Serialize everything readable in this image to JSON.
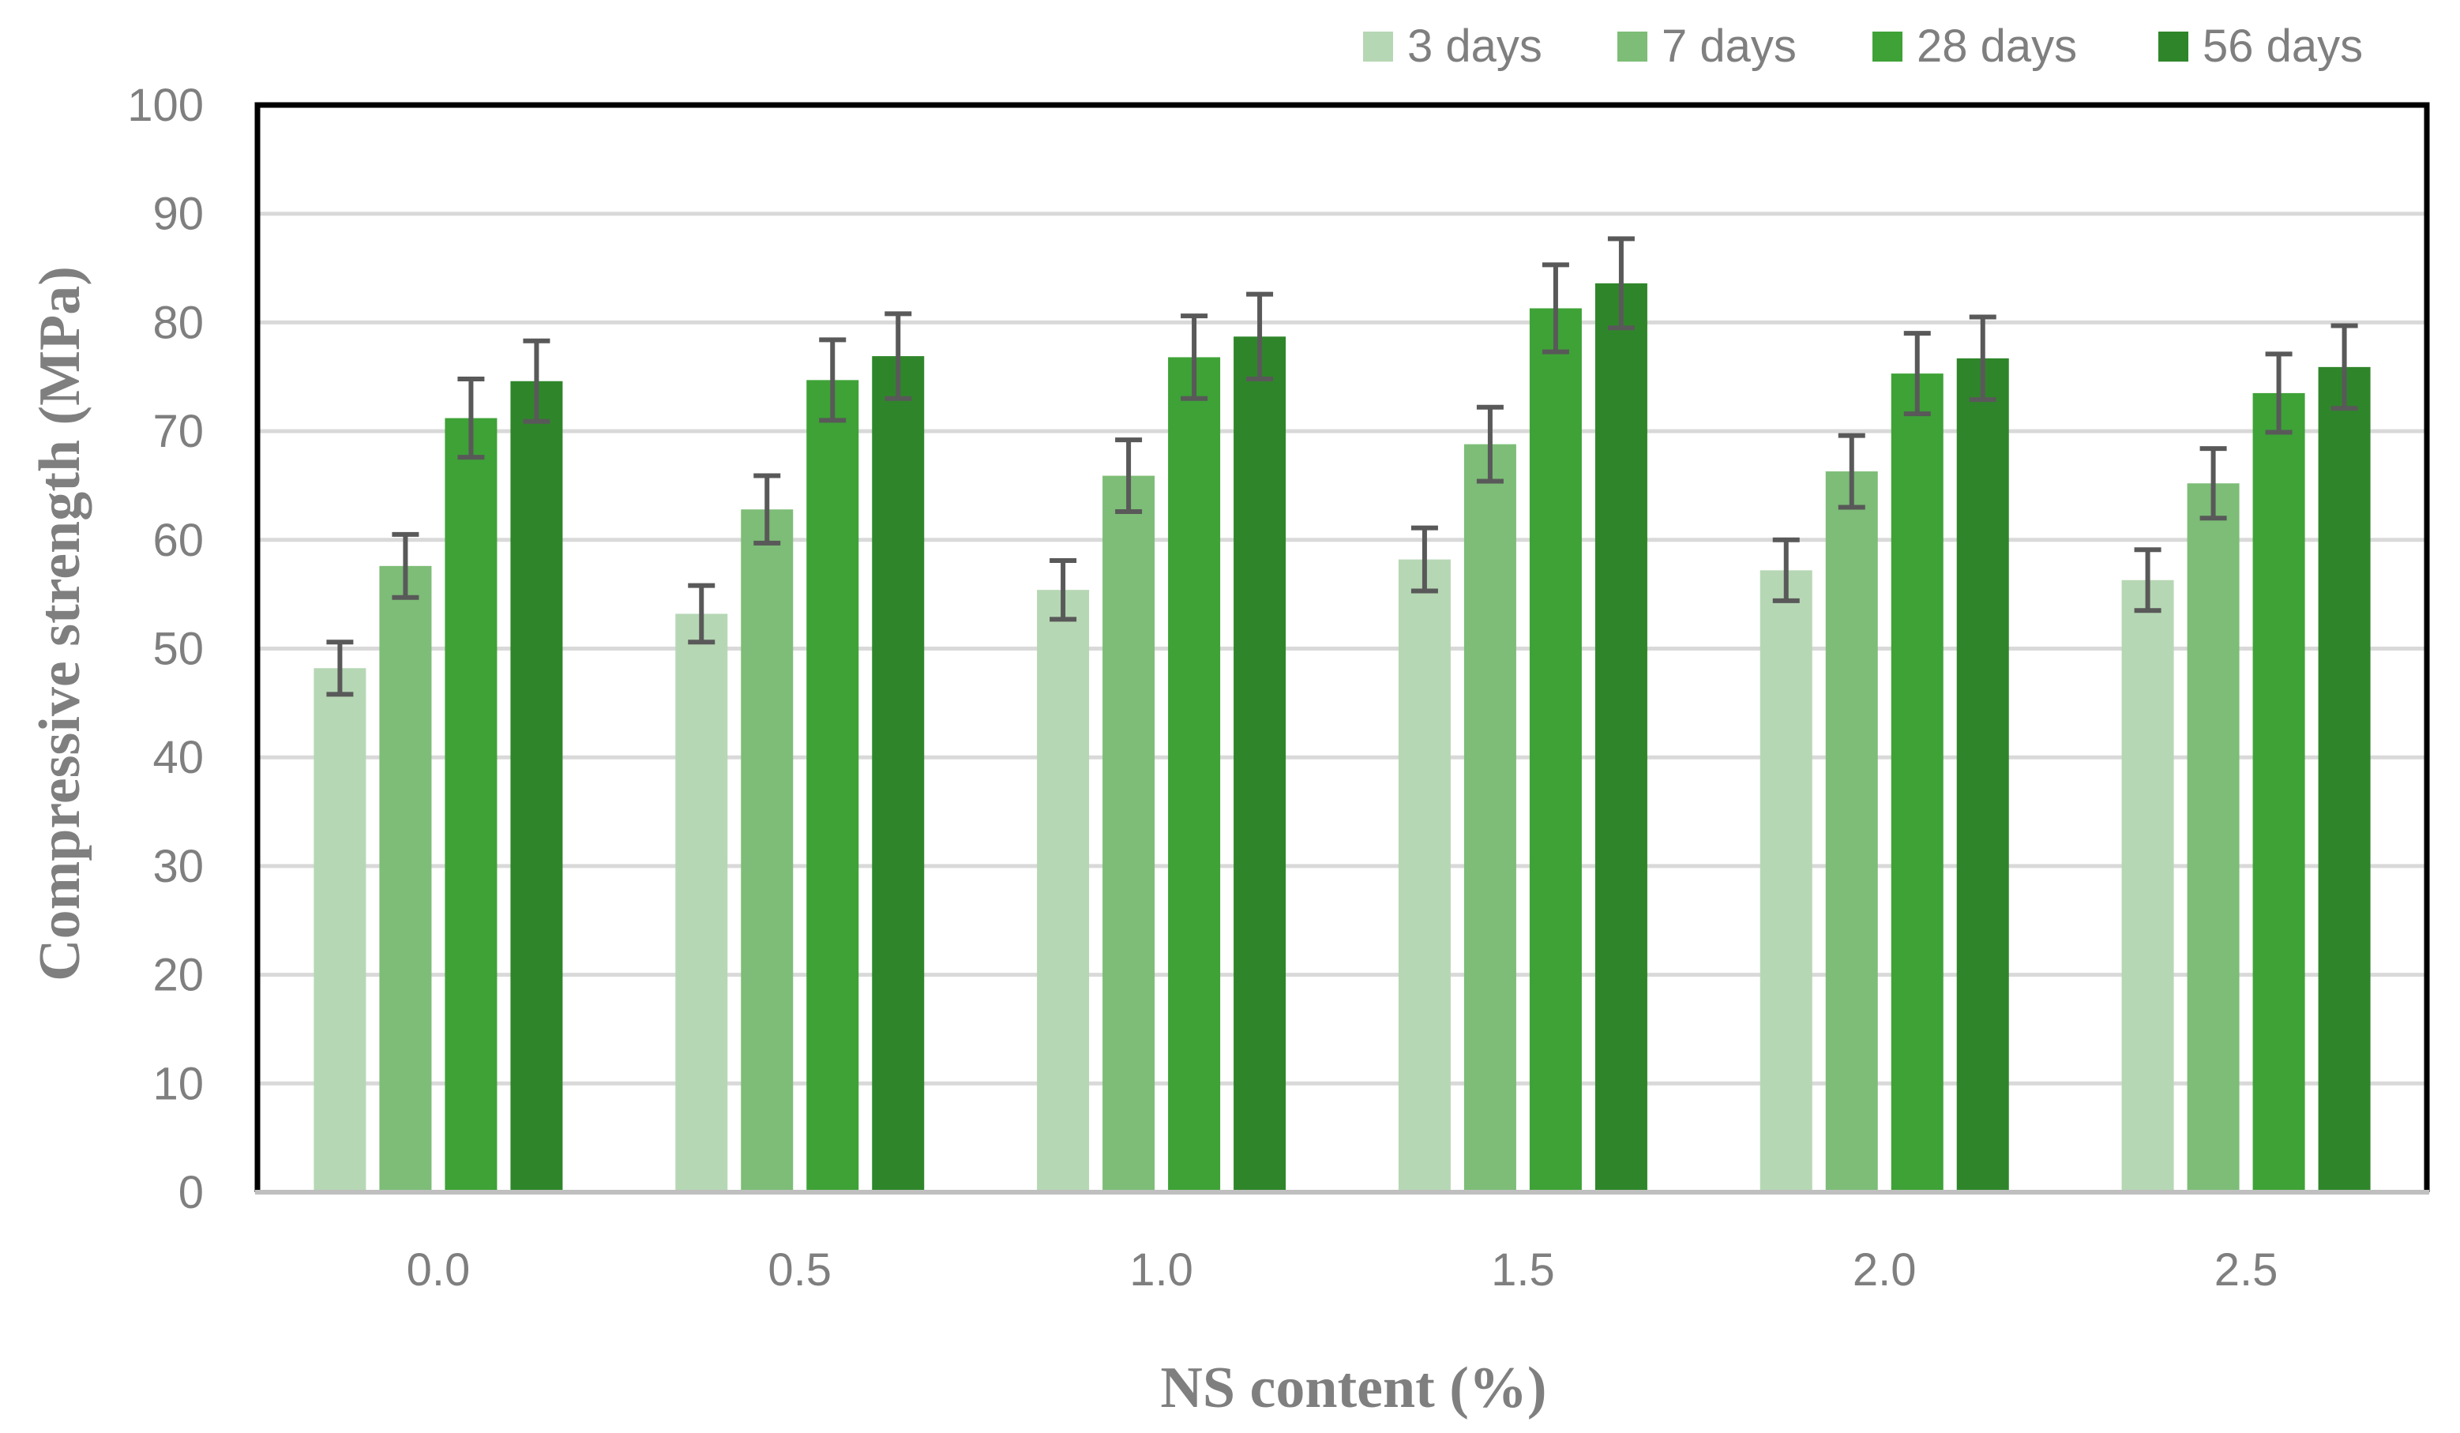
{
  "chart_data": {
    "type": "bar",
    "title": "",
    "xlabel": "NS content (%)",
    "ylabel": "Compressive strength (MPa)",
    "ylim": [
      0,
      100
    ],
    "yticks": [
      0,
      10,
      20,
      30,
      40,
      50,
      60,
      70,
      80,
      90,
      100
    ],
    "grid": true,
    "legend_position": "top-right",
    "categories": [
      "0.0",
      "0.5",
      "1.0",
      "1.5",
      "2.0",
      "2.5"
    ],
    "series": [
      {
        "name": "3 days",
        "color": "#b6d7b4",
        "values": [
          48.2,
          53.2,
          55.4,
          58.2,
          57.2,
          56.3
        ],
        "error": [
          2.4,
          2.6,
          2.7,
          2.9,
          2.8,
          2.8
        ]
      },
      {
        "name": "7 days",
        "color": "#7dbd77",
        "values": [
          57.6,
          62.8,
          65.9,
          68.8,
          66.3,
          65.2
        ],
        "error": [
          2.9,
          3.1,
          3.3,
          3.4,
          3.3,
          3.2
        ]
      },
      {
        "name": "28 days",
        "color": "#3ea237",
        "values": [
          71.2,
          74.7,
          76.8,
          81.3,
          75.3,
          73.5
        ],
        "error": [
          3.6,
          3.7,
          3.8,
          4.0,
          3.7,
          3.6
        ]
      },
      {
        "name": "56 days",
        "color": "#2f862a",
        "values": [
          74.6,
          76.9,
          78.7,
          83.6,
          76.7,
          75.9
        ],
        "error": [
          3.7,
          3.9,
          3.9,
          4.1,
          3.8,
          3.8
        ]
      }
    ]
  }
}
